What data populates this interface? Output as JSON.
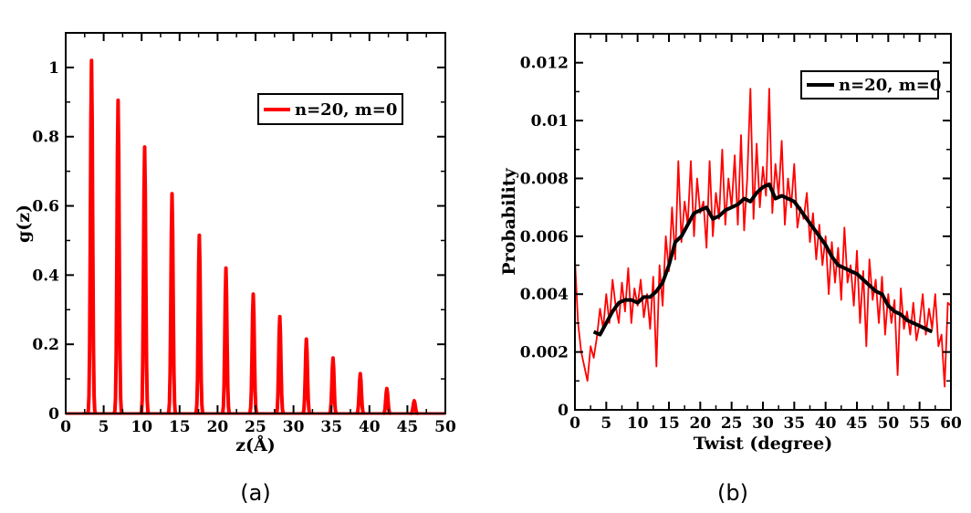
{
  "chart_data": [
    {
      "type": "line",
      "caption": "(a)",
      "xlabel": "z(Å)",
      "ylabel": "g(z)",
      "xlim": [
        0,
        50
      ],
      "ylim": [
        0,
        1.1
      ],
      "xticks": [
        0,
        5,
        10,
        15,
        20,
        25,
        30,
        35,
        40,
        45,
        50
      ],
      "yticks": [
        0,
        0.2,
        0.4,
        0.6,
        0.8,
        1
      ],
      "ytick_labels": [
        "0",
        "0.2",
        "0.4",
        "0.6",
        "0.8",
        "1"
      ],
      "legend_position": "top-right",
      "grid": false,
      "peak_half_width": 0.5,
      "series": [
        {
          "name": "n=20, m=0",
          "color": "#ff0000",
          "peaks": [
            {
              "x": 3.4,
              "y": 1.02
            },
            {
              "x": 6.9,
              "y": 0.905
            },
            {
              "x": 10.4,
              "y": 0.77
            },
            {
              "x": 14.0,
              "y": 0.635
            },
            {
              "x": 17.6,
              "y": 0.515
            },
            {
              "x": 21.1,
              "y": 0.42
            },
            {
              "x": 24.7,
              "y": 0.345
            },
            {
              "x": 28.2,
              "y": 0.28
            },
            {
              "x": 31.7,
              "y": 0.215
            },
            {
              "x": 35.2,
              "y": 0.16
            },
            {
              "x": 38.8,
              "y": 0.115
            },
            {
              "x": 42.3,
              "y": 0.072
            },
            {
              "x": 45.9,
              "y": 0.037
            }
          ]
        }
      ]
    },
    {
      "type": "line",
      "caption": "(b)",
      "xlabel": "Twist (degree)",
      "ylabel": "Probability",
      "xlim": [
        0,
        60
      ],
      "ylim": [
        0,
        0.013
      ],
      "xticks": [
        0,
        5,
        10,
        15,
        20,
        25,
        30,
        35,
        40,
        45,
        50,
        55,
        60
      ],
      "yticks": [
        0,
        0.002,
        0.004,
        0.006,
        0.008,
        0.01,
        0.012
      ],
      "ytick_labels": [
        "0",
        "0.002",
        "0.004",
        "0.006",
        "0.008",
        "0.01",
        "0.012"
      ],
      "legend_position": "top-right",
      "grid": false,
      "series": [
        {
          "name": "",
          "color": "#ff0000",
          "x": [
            0,
            0.5,
            1,
            1.5,
            2,
            2.5,
            3,
            3.5,
            4,
            4.5,
            5,
            5.5,
            6,
            6.5,
            7,
            7.5,
            8,
            8.5,
            9,
            9.5,
            10,
            10.5,
            11,
            11.5,
            12,
            12.5,
            13,
            13.5,
            14,
            14.5,
            15,
            15.5,
            16,
            16.5,
            17,
            17.5,
            18,
            18.5,
            19,
            19.5,
            20,
            20.5,
            21,
            21.5,
            22,
            22.5,
            23,
            23.5,
            24,
            24.5,
            25,
            25.5,
            26,
            26.5,
            27,
            27.5,
            28,
            28.5,
            29,
            29.5,
            30,
            30.5,
            31,
            31.5,
            32,
            32.5,
            33,
            33.5,
            34,
            34.5,
            35,
            35.5,
            36,
            36.5,
            37,
            37.5,
            38,
            38.5,
            39,
            39.5,
            40,
            40.5,
            41,
            41.5,
            42,
            42.5,
            43,
            43.5,
            44,
            44.5,
            45,
            45.5,
            46,
            46.5,
            47,
            47.5,
            48,
            48.5,
            49,
            49.5,
            50,
            50.5,
            51,
            51.5,
            52,
            52.5,
            53,
            53.5,
            54,
            54.5,
            55,
            55.5,
            56,
            56.5,
            57,
            57.5,
            58,
            58.5,
            59,
            59.5,
            60
          ],
          "y": [
            0.0052,
            0.003,
            0.002,
            0.0015,
            0.001,
            0.0022,
            0.0018,
            0.0025,
            0.0035,
            0.0028,
            0.004,
            0.003,
            0.0045,
            0.0036,
            0.003,
            0.0044,
            0.0034,
            0.0049,
            0.003,
            0.0042,
            0.0036,
            0.0045,
            0.0032,
            0.004,
            0.0028,
            0.0046,
            0.0015,
            0.005,
            0.0036,
            0.006,
            0.0048,
            0.007,
            0.0052,
            0.0086,
            0.0058,
            0.0072,
            0.0064,
            0.0086,
            0.006,
            0.008,
            0.0068,
            0.0072,
            0.0056,
            0.0086,
            0.006,
            0.0075,
            0.0066,
            0.009,
            0.0064,
            0.008,
            0.007,
            0.0088,
            0.0064,
            0.0095,
            0.0062,
            0.008,
            0.0111,
            0.0066,
            0.0092,
            0.007,
            0.0084,
            0.0074,
            0.0111,
            0.0068,
            0.0085,
            0.0074,
            0.0093,
            0.0064,
            0.008,
            0.007,
            0.0085,
            0.0063,
            0.007,
            0.0066,
            0.0075,
            0.0058,
            0.0068,
            0.0052,
            0.0064,
            0.005,
            0.006,
            0.004,
            0.0058,
            0.0044,
            0.0056,
            0.0038,
            0.0063,
            0.0044,
            0.005,
            0.0036,
            0.0055,
            0.003,
            0.0048,
            0.0022,
            0.0052,
            0.0038,
            0.0045,
            0.003,
            0.0046,
            0.0026,
            0.004,
            0.003,
            0.0038,
            0.0012,
            0.0042,
            0.0028,
            0.0034,
            0.0026,
            0.0037,
            0.0024,
            0.003,
            0.004,
            0.0026,
            0.0035,
            0.0028,
            0.004,
            0.0022,
            0.0026,
            0.0008,
            0.0037,
            0.0036
          ]
        },
        {
          "name": "n=20, m=0",
          "color": "#000000",
          "x": [
            3,
            4,
            5,
            6,
            7,
            8,
            9,
            10,
            11,
            12,
            13,
            14,
            15,
            16,
            17,
            18,
            19,
            20,
            21,
            22,
            23,
            24,
            25,
            26,
            27,
            28,
            29,
            30,
            31,
            32,
            33,
            34,
            35,
            36,
            37,
            38,
            39,
            40,
            41,
            42,
            43,
            44,
            45,
            46,
            47,
            48,
            49,
            50,
            51,
            52,
            53,
            54,
            55,
            56,
            57
          ],
          "y": [
            0.0027,
            0.0026,
            0.003,
            0.0034,
            0.0037,
            0.0038,
            0.0038,
            0.0037,
            0.0039,
            0.0039,
            0.0041,
            0.0044,
            0.005,
            0.0058,
            0.006,
            0.0064,
            0.0068,
            0.0069,
            0.007,
            0.0066,
            0.0067,
            0.0069,
            0.007,
            0.0071,
            0.0073,
            0.0072,
            0.0075,
            0.0077,
            0.0078,
            0.0073,
            0.0074,
            0.0073,
            0.0072,
            0.0069,
            0.0066,
            0.0063,
            0.006,
            0.0057,
            0.0053,
            0.005,
            0.0049,
            0.0048,
            0.0047,
            0.0045,
            0.0043,
            0.0041,
            0.004,
            0.0036,
            0.0034,
            0.0033,
            0.0031,
            0.003,
            0.0029,
            0.0028,
            0.0027
          ]
        }
      ]
    }
  ]
}
